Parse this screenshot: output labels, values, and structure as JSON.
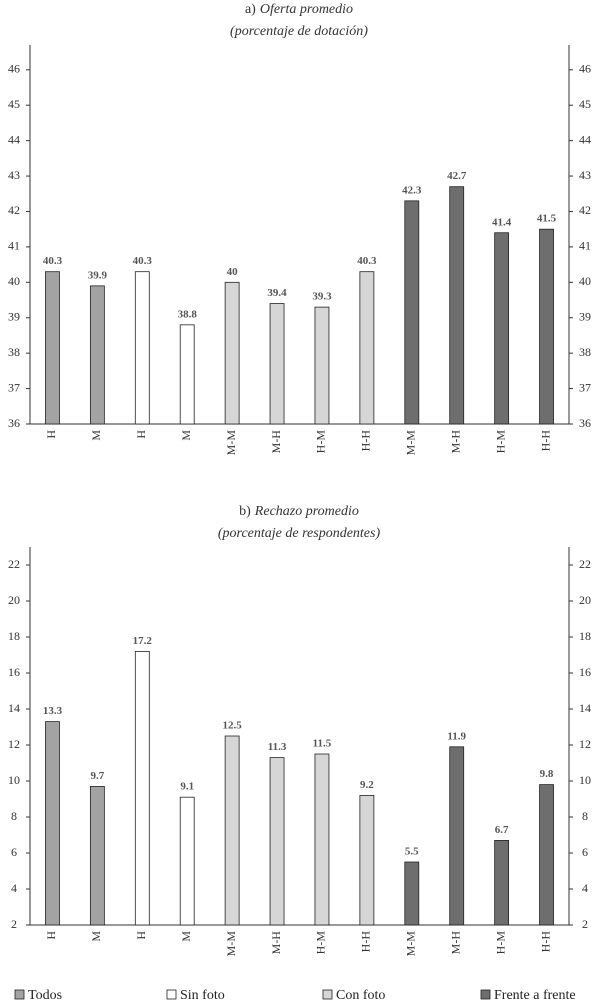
{
  "chart_data": [
    {
      "type": "bar",
      "label": "a)",
      "title": "Oferta promedio",
      "subtitle": "(porcentaje de dotación)",
      "categories": [
        "H",
        "M",
        "H",
        "M",
        "M-M",
        "M-H",
        "H-M",
        "H-H",
        "M-M",
        "M-H",
        "H-M",
        "H-H"
      ],
      "series": [
        {
          "values": [
            40.3,
            39.9,
            null,
            null,
            null,
            null,
            null,
            null,
            null,
            null,
            null,
            null
          ]
        },
        {
          "values": [
            null,
            null,
            40.3,
            38.8,
            null,
            null,
            null,
            null,
            null,
            null,
            null,
            null
          ]
        },
        {
          "values": [
            null,
            null,
            null,
            null,
            40,
            39.4,
            39.3,
            40.3,
            null,
            null,
            null,
            null
          ]
        },
        {
          "values": [
            null,
            null,
            null,
            null,
            null,
            null,
            null,
            null,
            42.3,
            42.7,
            41.4,
            41.5
          ]
        }
      ],
      "ylim": [
        36,
        46.7
      ],
      "yticks": [
        36,
        37,
        38,
        39,
        40,
        41,
        42,
        43,
        44,
        45,
        46
      ]
    },
    {
      "type": "bar",
      "label": "b)",
      "title": "Rechazo promedio",
      "subtitle": "(porcentaje de respondentes)",
      "categories": [
        "H",
        "M",
        "H",
        "M",
        "M-M",
        "M-H",
        "H-M",
        "H-H",
        "M-M",
        "M-H",
        "H-M",
        "H-H"
      ],
      "series": [
        {
          "values": [
            13.3,
            9.7,
            null,
            null,
            null,
            null,
            null,
            null,
            null,
            null,
            null,
            null
          ]
        },
        {
          "values": [
            null,
            null,
            17.2,
            9.1,
            null,
            null,
            null,
            null,
            null,
            null,
            null,
            null
          ]
        },
        {
          "values": [
            null,
            null,
            null,
            null,
            12.5,
            11.3,
            11.5,
            9.2,
            null,
            null,
            null,
            null
          ]
        },
        {
          "values": [
            null,
            null,
            null,
            null,
            null,
            null,
            null,
            null,
            5.5,
            11.9,
            6.7,
            9.8
          ]
        }
      ],
      "ylim": [
        2,
        23
      ],
      "yticks": [
        2,
        4,
        6,
        8,
        10,
        12,
        14,
        16,
        18,
        20,
        22
      ]
    }
  ],
  "legend": {
    "items": [
      {
        "name": "Todos",
        "color": "#a3a3a3"
      },
      {
        "name": "Sin foto",
        "color": "#ffffff"
      },
      {
        "name": "Con foto",
        "color": "#d6d6d6"
      },
      {
        "name": "Frente a frente",
        "color": "#6e6e6e"
      }
    ]
  }
}
